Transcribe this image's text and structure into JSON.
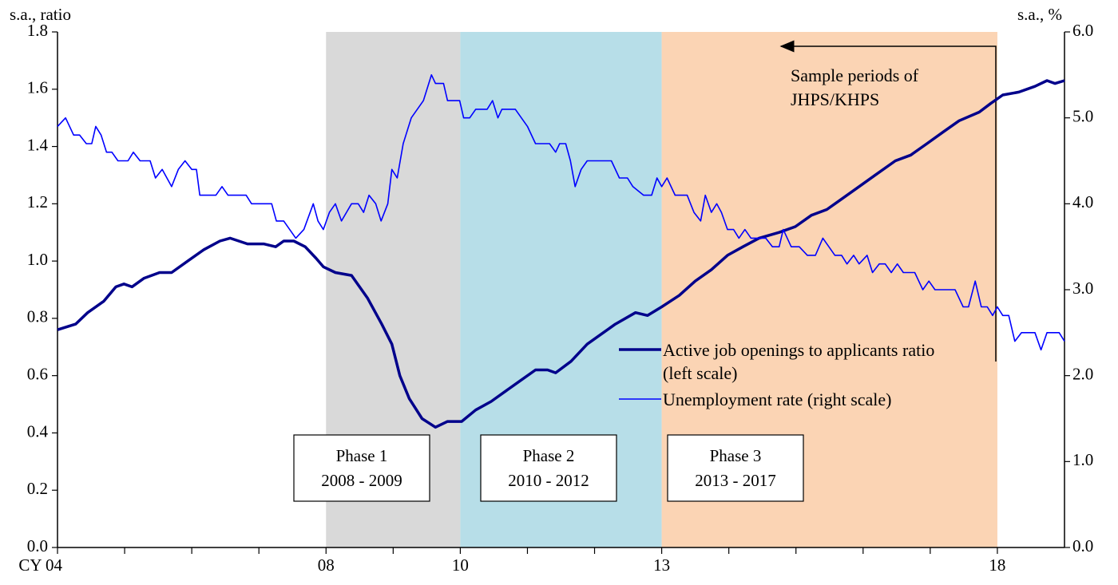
{
  "chart_data": {
    "type": "line",
    "y_axis_label": "s.a., ratio",
    "y2_axis_label": "s.a., %",
    "annotation": "Sample periods of JHPS/KHPS",
    "xlim": [
      2004,
      2019
    ],
    "xticks": [
      {
        "value": 2004,
        "label": "CY 04"
      },
      {
        "value": 2008,
        "label": "08"
      },
      {
        "value": 2010,
        "label": "10"
      },
      {
        "value": 2013,
        "label": "13"
      },
      {
        "value": 2018,
        "label": "18"
      }
    ],
    "x_minor_ticks": [
      2005,
      2006,
      2007,
      2009,
      2011,
      2012,
      2014,
      2015,
      2016,
      2017
    ],
    "ylim": [
      0,
      1.8
    ],
    "yticks": [
      {
        "value": 0,
        "label": "0.0"
      },
      0.2,
      0.4,
      0.6,
      0.8,
      {
        "value": 1,
        "label": "1.0"
      },
      1.2,
      1.4,
      1.6,
      1.8
    ],
    "y2lim": [
      0,
      6
    ],
    "y2ticks": [
      {
        "value": 0,
        "label": "0.0"
      },
      {
        "value": 1,
        "label": "1.0"
      },
      {
        "value": 2,
        "label": "2.0"
      },
      {
        "value": 3,
        "label": "3.0"
      },
      {
        "value": 4,
        "label": "4.0"
      },
      {
        "value": 5,
        "label": "5.0"
      },
      {
        "value": 6,
        "label": "6.0"
      }
    ],
    "shaded_periods": [
      {
        "start": 2008,
        "end": 2010,
        "color": "#d9d9d9",
        "label": [
          "Phase 1",
          "2008 - 2009"
        ]
      },
      {
        "start": 2010,
        "end": 2013,
        "color": "#b7dee8",
        "label": [
          "Phase 2",
          "2010 - 2012"
        ]
      },
      {
        "start": 2013,
        "end": 2018,
        "color": "#fbd4b4",
        "label": [
          "Phase 3",
          "2013 - 2017"
        ]
      }
    ],
    "series": [
      {
        "name": "Active job openings to applicants ratio (left scale)",
        "color": "#00008b",
        "width": 3.5,
        "x": [
          2004.0,
          2004.27,
          2004.45,
          2004.69,
          2004.87,
          2004.99,
          2005.11,
          2005.29,
          2005.52,
          2005.7,
          2005.94,
          2006.18,
          2006.42,
          2006.57,
          2006.83,
          2007.07,
          2007.25,
          2007.37,
          2007.52,
          2007.69,
          2007.85,
          2007.96,
          2008.14,
          2008.38,
          2008.62,
          2008.83,
          2008.98,
          2009.1,
          2009.24,
          2009.43,
          2009.63,
          2009.81,
          2010.02,
          2010.23,
          2010.46,
          2010.64,
          2010.88,
          2011.12,
          2011.3,
          2011.42,
          2011.65,
          2011.89,
          2012.13,
          2012.31,
          2012.61,
          2012.79,
          2013.0,
          2013.26,
          2013.5,
          2013.74,
          2013.98,
          2014.21,
          2014.45,
          2014.75,
          2014.99,
          2015.23,
          2015.46,
          2015.7,
          2015.94,
          2016.18,
          2016.48,
          2016.71,
          2016.95,
          2017.19,
          2017.43,
          2017.73,
          2017.9,
          2018.08,
          2018.32,
          2018.56,
          2018.74,
          2018.86,
          2019.0
        ],
        "values": [
          0.76,
          0.78,
          0.82,
          0.86,
          0.91,
          0.92,
          0.91,
          0.94,
          0.96,
          0.96,
          1.0,
          1.04,
          1.07,
          1.08,
          1.06,
          1.06,
          1.05,
          1.07,
          1.07,
          1.05,
          1.01,
          0.98,
          0.96,
          0.95,
          0.87,
          0.78,
          0.71,
          0.6,
          0.52,
          0.45,
          0.42,
          0.44,
          0.44,
          0.48,
          0.51,
          0.54,
          0.58,
          0.62,
          0.62,
          0.61,
          0.65,
          0.71,
          0.75,
          0.78,
          0.82,
          0.81,
          0.84,
          0.88,
          0.93,
          0.97,
          1.02,
          1.05,
          1.08,
          1.1,
          1.12,
          1.16,
          1.18,
          1.22,
          1.26,
          1.3,
          1.35,
          1.37,
          1.41,
          1.45,
          1.49,
          1.52,
          1.55,
          1.58,
          1.59,
          1.61,
          1.63,
          1.62,
          1.63
        ]
      },
      {
        "name": "Unemployment rate (right scale)",
        "color": "#0000ff",
        "width": 1.6,
        "axis": "y2",
        "x": [
          2004.0,
          2004.12,
          2004.24,
          2004.33,
          2004.43,
          2004.51,
          2004.57,
          2004.65,
          2004.73,
          2004.81,
          2004.9,
          2005.05,
          2005.13,
          2005.23,
          2005.38,
          2005.46,
          2005.56,
          2005.7,
          2005.8,
          2005.9,
          2006.0,
          2006.07,
          2006.12,
          2006.36,
          2006.45,
          2006.54,
          2006.81,
          2006.89,
          2007.19,
          2007.26,
          2007.37,
          2007.55,
          2007.67,
          2007.81,
          2007.88,
          2007.96,
          2008.05,
          2008.14,
          2008.23,
          2008.38,
          2008.48,
          2008.56,
          2008.64,
          2008.74,
          2008.82,
          2008.92,
          2008.98,
          2009.06,
          2009.15,
          2009.27,
          2009.45,
          2009.57,
          2009.63,
          2009.75,
          2009.81,
          2009.99,
          2010.05,
          2010.14,
          2010.23,
          2010.4,
          2010.48,
          2010.56,
          2010.62,
          2010.82,
          2011.0,
          2011.12,
          2011.24,
          2011.33,
          2011.42,
          2011.48,
          2011.57,
          2011.64,
          2011.71,
          2011.8,
          2011.89,
          2012.25,
          2012.37,
          2012.49,
          2012.57,
          2012.73,
          2012.85,
          2012.93,
          2013.0,
          2013.08,
          2013.2,
          2013.38,
          2013.48,
          2013.58,
          2013.65,
          2013.74,
          2013.82,
          2013.89,
          2013.98,
          2014.07,
          2014.15,
          2014.24,
          2014.33,
          2014.55,
          2014.65,
          2014.75,
          2014.81,
          2014.93,
          2015.05,
          2015.17,
          2015.29,
          2015.4,
          2015.58,
          2015.68,
          2015.76,
          2015.86,
          2015.94,
          2016.06,
          2016.14,
          2016.24,
          2016.33,
          2016.42,
          2016.51,
          2016.6,
          2016.77,
          2016.89,
          2016.98,
          2017.07,
          2017.37,
          2017.49,
          2017.57,
          2017.67,
          2017.76,
          2017.85,
          2017.93,
          2018.0,
          2018.08,
          2018.17,
          2018.26,
          2018.36,
          2018.56,
          2018.65,
          2018.74,
          2018.83,
          2018.92,
          2019.0
        ],
        "values": [
          4.9,
          5.0,
          4.8,
          4.8,
          4.7,
          4.7,
          4.9,
          4.8,
          4.6,
          4.6,
          4.5,
          4.5,
          4.6,
          4.5,
          4.5,
          4.3,
          4.4,
          4.2,
          4.4,
          4.5,
          4.4,
          4.4,
          4.1,
          4.1,
          4.2,
          4.1,
          4.1,
          4.0,
          4.0,
          3.8,
          3.8,
          3.6,
          3.7,
          4.0,
          3.8,
          3.7,
          3.9,
          4.0,
          3.8,
          4.0,
          4.0,
          3.9,
          4.1,
          4.0,
          3.8,
          4.0,
          4.4,
          4.3,
          4.7,
          5.0,
          5.2,
          5.5,
          5.4,
          5.4,
          5.2,
          5.2,
          5.0,
          5.0,
          5.1,
          5.1,
          5.2,
          5.0,
          5.1,
          5.1,
          4.9,
          4.7,
          4.7,
          4.7,
          4.6,
          4.7,
          4.7,
          4.5,
          4.2,
          4.4,
          4.5,
          4.5,
          4.3,
          4.3,
          4.2,
          4.1,
          4.1,
          4.3,
          4.2,
          4.3,
          4.1,
          4.1,
          3.9,
          3.8,
          4.1,
          3.9,
          4.0,
          3.9,
          3.7,
          3.7,
          3.6,
          3.7,
          3.6,
          3.6,
          3.5,
          3.5,
          3.7,
          3.5,
          3.5,
          3.4,
          3.4,
          3.6,
          3.4,
          3.4,
          3.3,
          3.4,
          3.3,
          3.4,
          3.2,
          3.3,
          3.3,
          3.2,
          3.3,
          3.2,
          3.2,
          3.0,
          3.1,
          3.0,
          3.0,
          2.8,
          2.8,
          3.1,
          2.8,
          2.8,
          2.7,
          2.8,
          2.7,
          2.7,
          2.4,
          2.5,
          2.5,
          2.3,
          2.5,
          2.5,
          2.5,
          2.4
        ]
      }
    ]
  }
}
